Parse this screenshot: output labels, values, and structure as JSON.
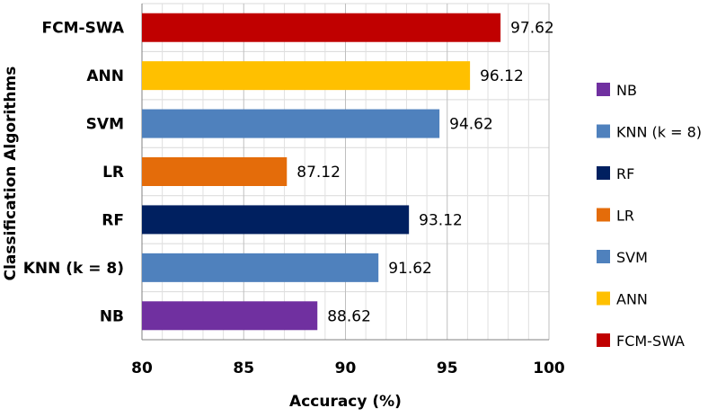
{
  "chart_data": {
    "type": "bar",
    "orientation": "horizontal",
    "title": "",
    "xlabel": "Accuracy (%)",
    "ylabel": "Classification Algorithms",
    "xlim": [
      80,
      100
    ],
    "xticks": [
      80,
      85,
      90,
      95,
      100
    ],
    "grid": true,
    "legend_position": "right",
    "categories": [
      "NB",
      "KNN (k = 8)",
      "RF",
      "LR",
      "SVM",
      "ANN",
      "FCM-SWA"
    ],
    "values": [
      88.62,
      91.62,
      93.12,
      87.12,
      94.62,
      96.12,
      97.62
    ],
    "value_labels": [
      "88.62",
      "91.62",
      "93.12",
      "87.12",
      "94.62",
      "96.12",
      "97.62"
    ],
    "colors": [
      "#7030a0",
      "#4f81bd",
      "#002060",
      "#e46c0a",
      "#4f81bd",
      "#ffc000",
      "#c00000"
    ]
  }
}
